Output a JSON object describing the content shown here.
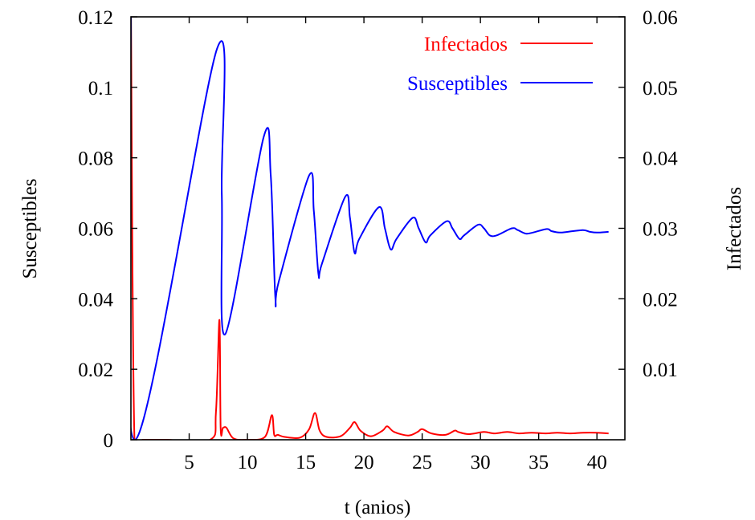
{
  "chart_data": {
    "type": "line",
    "title": "",
    "xlabel": "t (anios)",
    "ylabel": "Susceptibles",
    "y2label": "Infectados",
    "xlim": [
      0,
      42.4
    ],
    "ylim": [
      0,
      0.12
    ],
    "y2lim": [
      0,
      0.06
    ],
    "x_ticks": [
      5,
      10,
      15,
      20,
      25,
      30,
      35,
      40
    ],
    "x_tick_labels": [
      "5",
      "10",
      "15",
      "20",
      "25",
      "30",
      "35",
      "40"
    ],
    "y_ticks": [
      0,
      0.02,
      0.04,
      0.06,
      0.08,
      0.1,
      0.12
    ],
    "y_tick_labels": [
      "0",
      "0.02",
      "0.04",
      "0.06",
      "0.08",
      "0.1",
      "0.12"
    ],
    "y2_ticks": [
      0.01,
      0.02,
      0.03,
      0.04,
      0.05,
      0.06
    ],
    "y2_tick_labels": [
      "0.01",
      "0.02",
      "0.03",
      "0.04",
      "0.05",
      "0.06"
    ],
    "grid": false,
    "legend_position": "top-right",
    "series": [
      {
        "name": "Infectados",
        "axis": "right",
        "color": "#ff0000",
        "x": [
          0.0,
          0.3,
          1.0,
          3.0,
          6.8,
          7.3,
          7.6,
          7.7,
          7.9,
          8.2,
          8.8,
          10.0,
          11.5,
          12.1,
          12.3,
          12.6,
          13.2,
          14.5,
          15.3,
          15.8,
          16.2,
          16.8,
          18.0,
          18.8,
          19.2,
          19.7,
          20.6,
          21.6,
          22.0,
          22.6,
          23.8,
          24.6,
          25.0,
          25.8,
          27.0,
          27.8,
          28.1,
          29.0,
          30.3,
          31.2,
          32.3,
          33.3,
          34.4,
          35.6,
          36.6,
          37.7,
          38.8,
          40.0,
          41.0
        ],
        "y": [
          0.062,
          0.0001,
          0.0,
          0.0,
          0.0,
          0.004,
          0.017,
          0.0017,
          0.0017,
          0.0017,
          0.0002,
          0.0,
          0.0004,
          0.0035,
          0.0007,
          0.0007,
          0.0004,
          0.0003,
          0.0015,
          0.0038,
          0.0013,
          0.0004,
          0.0005,
          0.0017,
          0.0025,
          0.0013,
          0.0005,
          0.0013,
          0.0019,
          0.0011,
          0.0006,
          0.0011,
          0.0015,
          0.0009,
          0.0007,
          0.0013,
          0.0011,
          0.0008,
          0.0011,
          0.0009,
          0.0011,
          0.0009,
          0.001,
          0.0009,
          0.001,
          0.0009,
          0.001,
          0.001,
          0.0009
        ]
      },
      {
        "name": "Susceptibles",
        "axis": "left",
        "color": "#0000ff",
        "x": [
          0.0,
          0.3,
          7.4,
          7.8,
          8.1,
          11.4,
          12.0,
          12.4,
          12.7,
          15.3,
          15.7,
          16.1,
          16.4,
          18.4,
          18.8,
          19.2,
          19.6,
          21.3,
          21.8,
          22.3,
          22.8,
          24.2,
          24.7,
          25.3,
          25.7,
          27.1,
          27.6,
          28.2,
          28.6,
          29.8,
          30.3,
          30.8,
          31.4,
          32.7,
          33.2,
          33.9,
          34.5,
          35.7,
          36.1,
          36.8,
          37.5,
          38.8,
          39.4,
          40.0,
          41.0
        ],
        "y": [
          0.12,
          0.0,
          0.111,
          0.07,
          0.03,
          0.086,
          0.075,
          0.04,
          0.045,
          0.075,
          0.065,
          0.047,
          0.05,
          0.069,
          0.063,
          0.053,
          0.057,
          0.066,
          0.06,
          0.054,
          0.057,
          0.063,
          0.06,
          0.056,
          0.058,
          0.062,
          0.06,
          0.057,
          0.058,
          0.061,
          0.06,
          0.058,
          0.058,
          0.06,
          0.0595,
          0.0585,
          0.0588,
          0.0598,
          0.0592,
          0.0588,
          0.059,
          0.0595,
          0.059,
          0.0588,
          0.059
        ]
      }
    ]
  }
}
